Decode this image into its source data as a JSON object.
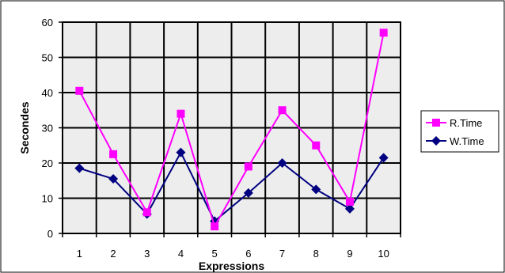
{
  "chart_data": {
    "type": "line",
    "categories": [
      "1",
      "2",
      "3",
      "4",
      "5",
      "6",
      "7",
      "8",
      "9",
      "10"
    ],
    "series": [
      {
        "name": "R.Time",
        "color": "#FF00FF",
        "marker": "square",
        "values": [
          40.5,
          22.5,
          6,
          34,
          2,
          19,
          35,
          25,
          9,
          57
        ]
      },
      {
        "name": "W.Time",
        "color": "#000080",
        "marker": "diamond",
        "values": [
          18.5,
          15.5,
          5.5,
          23,
          3.5,
          11.5,
          20,
          12.5,
          7,
          21.5
        ]
      }
    ],
    "xlabel": "Expressions",
    "ylabel": "Secondes",
    "ylim": [
      0,
      60
    ],
    "yticks": [
      "0",
      "10",
      "20",
      "30",
      "40",
      "50",
      "60"
    ],
    "grid": "on",
    "plot_background": "#EDEDED",
    "legend_position": "right"
  }
}
